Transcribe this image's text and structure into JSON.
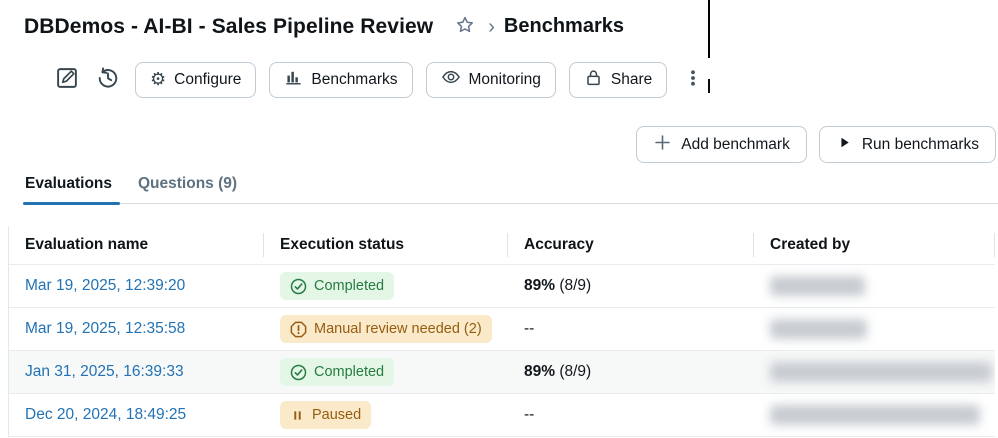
{
  "colors": {
    "link_blue": "#2272B4",
    "tab_active_underline": "#2272B4",
    "success_text": "#277C43",
    "success_bg": "#E4F6E5",
    "warning_text": "#955D10",
    "warning_bg": "#FAEACA",
    "text_primary": "#11171C",
    "text_secondary": "#5F7281"
  },
  "header": {
    "title": "DBDemos - AI-BI - Sales Pipeline Review",
    "star_icon": "star-icon",
    "breadcrumb_separator": "›",
    "breadcrumb_current": "Benchmarks"
  },
  "toolbar": {
    "edit_icon": "edit-icon",
    "history_icon": "history-icon",
    "gear_glyph": "⚙",
    "buttons": [
      {
        "label": "Configure",
        "icon": "gear-icon"
      },
      {
        "label": "Benchmarks",
        "icon": "bar-chart-icon"
      },
      {
        "label": "Monitoring",
        "icon": "eye-icon"
      },
      {
        "label": "Share",
        "icon": "lock-icon"
      }
    ],
    "more_icon": "kebab-menu-icon"
  },
  "actions": {
    "add_benchmark_label": "Add benchmark",
    "run_benchmarks_label": "Run benchmarks"
  },
  "tabs": [
    {
      "label": "Evaluations",
      "active": true
    },
    {
      "label": "Questions (9)",
      "active": false
    }
  ],
  "table": {
    "columns": [
      "Evaluation name",
      "Execution status",
      "Accuracy",
      "Created by"
    ],
    "rows": [
      {
        "evaluation_name": "Mar 19, 2025, 12:39:20",
        "status_label": "Completed",
        "status_type": "success",
        "status_icon": "check-circle-icon",
        "accuracy_strong": "89%",
        "accuracy_text": "(8/9)",
        "created_by_redacted": true,
        "created_by_blur_width": 95,
        "shaded": false
      },
      {
        "evaluation_name": "Mar 19, 2025, 12:35:58",
        "status_label": "Manual review needed (2)",
        "status_type": "warning",
        "status_icon": "alert-octagon-icon",
        "accuracy_strong": "",
        "accuracy_text": "--",
        "created_by_redacted": true,
        "created_by_blur_width": 97,
        "shaded": false
      },
      {
        "evaluation_name": "Jan 31, 2025, 16:39:33",
        "status_label": "Completed",
        "status_type": "success",
        "status_icon": "check-circle-icon",
        "accuracy_strong": "89%",
        "accuracy_text": "(8/9)",
        "created_by_redacted": true,
        "created_by_blur_width": 222,
        "shaded": true
      },
      {
        "evaluation_name": "Dec 20, 2024, 18:49:25",
        "status_label": "Paused",
        "status_type": "paused",
        "status_icon": "pause-icon",
        "accuracy_strong": "",
        "accuracy_text": "--",
        "created_by_redacted": true,
        "created_by_blur_width": 210,
        "shaded": false
      }
    ]
  }
}
